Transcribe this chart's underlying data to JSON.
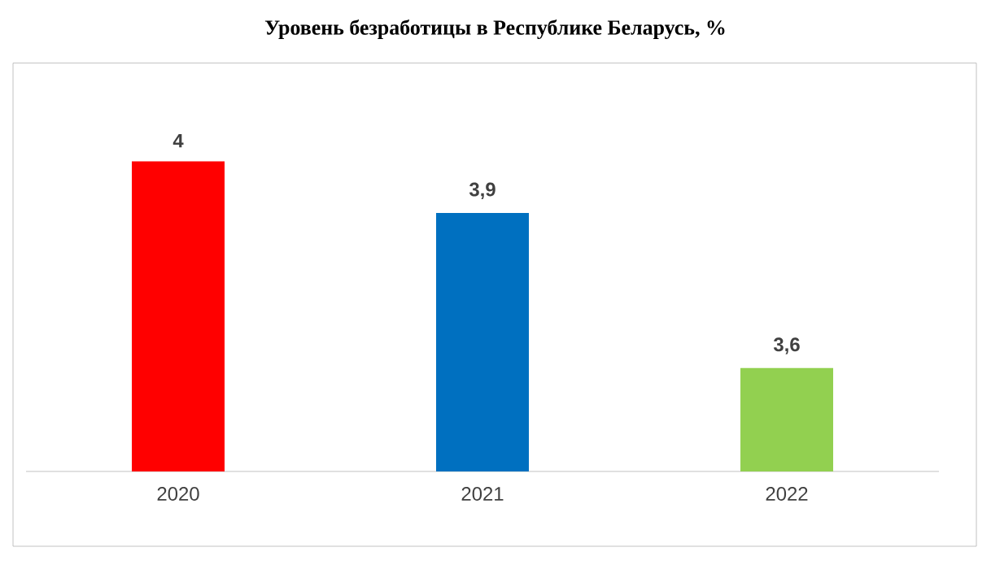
{
  "chart_data": {
    "type": "bar",
    "title": "Уровень безработицы в Республике Беларусь, %",
    "categories": [
      "2020",
      "2021",
      "2022"
    ],
    "values": [
      4,
      3.9,
      3.6
    ],
    "colors": [
      "#ff0000",
      "#0070c0",
      "#92d050"
    ],
    "ylim": [
      3.4,
      4.19
    ],
    "data_labels": true,
    "value_labels": [
      "4",
      "3,9",
      "3,6"
    ],
    "tick_labels": "x",
    "grid": false
  }
}
